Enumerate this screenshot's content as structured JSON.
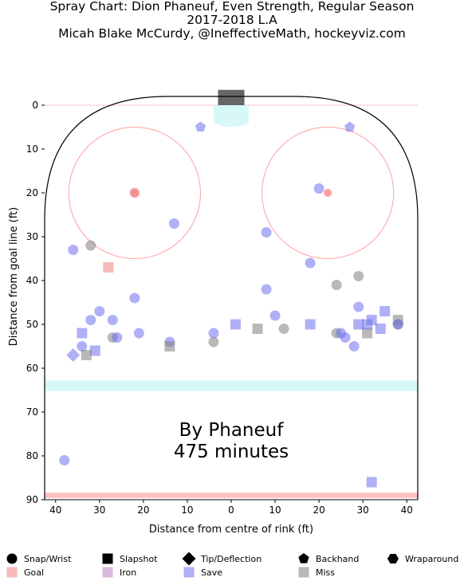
{
  "title": {
    "line1": "Spray Chart: Dion Phaneuf, Even Strength, Regular Season",
    "line2": "2017-2018 L.A",
    "line3": "Micah Blake McCurdy, @IneffectiveMath, hockeyviz.com"
  },
  "annotation": {
    "line1": "By Phaneuf",
    "line2": "475 minutes"
  },
  "colors": {
    "save": "#6f6ff0",
    "miss": "#808080",
    "goal": "#f08080",
    "iron": "#c080c0",
    "rink_line": "#000000",
    "goal_line": "#ffc0c0",
    "blue_line": "#d8f8f8",
    "crease": "#d8f8f8",
    "faceoff": "#ff9f9f",
    "net": "#666666"
  },
  "legend": {
    "shapes": [
      {
        "label": "Snap/Wrist",
        "shape": "circle"
      },
      {
        "label": "Slapshot",
        "shape": "square"
      },
      {
        "label": "Tip/Deflection",
        "shape": "diamond"
      },
      {
        "label": "Backhand",
        "shape": "pentagon"
      },
      {
        "label": "Wraparound",
        "shape": "hexagon"
      }
    ],
    "outcomes": [
      {
        "label": "Goal",
        "color": "#f08080"
      },
      {
        "label": "Iron",
        "color": "#c080c0"
      },
      {
        "label": "Save",
        "color": "#6f6ff0"
      },
      {
        "label": "Miss",
        "color": "#808080"
      }
    ]
  },
  "chart_data": {
    "type": "scatter",
    "xlabel": "Distance from centre of rink (ft)",
    "ylabel": "Distance from goal line (ft)",
    "xlim": [
      42.5,
      -42.5
    ],
    "ylim": [
      -2,
      90
    ],
    "x_ticks": [
      40,
      30,
      20,
      10,
      0,
      10,
      20,
      30,
      40
    ],
    "y_ticks": [
      0,
      10,
      20,
      30,
      40,
      50,
      60,
      70,
      80,
      90
    ],
    "grid": false,
    "legend_position": "bottom",
    "rink": {
      "faceoff_circles": [
        {
          "x": 22,
          "y": 20,
          "r": 15
        },
        {
          "x": -22,
          "y": 20,
          "r": 15
        }
      ],
      "blue_line_y": 64,
      "goal_line_y": 0,
      "bottom_line_y": 89
    },
    "shots": [
      {
        "x": 22,
        "y": 20,
        "type": "Snap/Wrist",
        "outcome": "Goal"
      },
      {
        "x": 28,
        "y": 37,
        "type": "Slapshot",
        "outcome": "Goal"
      },
      {
        "x": 13,
        "y": 27,
        "type": "Snap/Wrist",
        "outcome": "Save"
      },
      {
        "x": 36,
        "y": 33,
        "type": "Snap/Wrist",
        "outcome": "Save"
      },
      {
        "x": 32,
        "y": 32,
        "type": "Snap/Wrist",
        "outcome": "Miss"
      },
      {
        "x": 7,
        "y": 5,
        "type": "Backhand",
        "outcome": "Save"
      },
      {
        "x": -27,
        "y": 5,
        "type": "Backhand",
        "outcome": "Save"
      },
      {
        "x": -20,
        "y": 19,
        "type": "Snap/Wrist",
        "outcome": "Save"
      },
      {
        "x": -8,
        "y": 29,
        "type": "Snap/Wrist",
        "outcome": "Save"
      },
      {
        "x": -18,
        "y": 36,
        "type": "Snap/Wrist",
        "outcome": "Save"
      },
      {
        "x": -8,
        "y": 42,
        "type": "Snap/Wrist",
        "outcome": "Save"
      },
      {
        "x": -24,
        "y": 41,
        "type": "Snap/Wrist",
        "outcome": "Miss"
      },
      {
        "x": -29,
        "y": 39,
        "type": "Snap/Wrist",
        "outcome": "Miss"
      },
      {
        "x": 22,
        "y": 44,
        "type": "Snap/Wrist",
        "outcome": "Save"
      },
      {
        "x": 30,
        "y": 47,
        "type": "Snap/Wrist",
        "outcome": "Save"
      },
      {
        "x": 32,
        "y": 49,
        "type": "Snap/Wrist",
        "outcome": "Save"
      },
      {
        "x": 27,
        "y": 49,
        "type": "Snap/Wrist",
        "outcome": "Save"
      },
      {
        "x": 34,
        "y": 52,
        "type": "Slapshot",
        "outcome": "Save"
      },
      {
        "x": 31,
        "y": 56,
        "type": "Slapshot",
        "outcome": "Save"
      },
      {
        "x": 34,
        "y": 55,
        "type": "Snap/Wrist",
        "outcome": "Save"
      },
      {
        "x": 36,
        "y": 57,
        "type": "Tip/Deflection",
        "outcome": "Save"
      },
      {
        "x": 33,
        "y": 57,
        "type": "Slapshot",
        "outcome": "Miss"
      },
      {
        "x": 27,
        "y": 53,
        "type": "Snap/Wrist",
        "outcome": "Miss"
      },
      {
        "x": 26,
        "y": 53,
        "type": "Snap/Wrist",
        "outcome": "Save"
      },
      {
        "x": 21,
        "y": 52,
        "type": "Snap/Wrist",
        "outcome": "Save"
      },
      {
        "x": 14,
        "y": 54,
        "type": "Snap/Wrist",
        "outcome": "Save"
      },
      {
        "x": 14,
        "y": 55,
        "type": "Slapshot",
        "outcome": "Miss"
      },
      {
        "x": 4,
        "y": 52,
        "type": "Snap/Wrist",
        "outcome": "Save"
      },
      {
        "x": 4,
        "y": 54,
        "type": "Snap/Wrist",
        "outcome": "Miss"
      },
      {
        "x": -1,
        "y": 50,
        "type": "Slapshot",
        "outcome": "Save"
      },
      {
        "x": -6,
        "y": 51,
        "type": "Slapshot",
        "outcome": "Miss"
      },
      {
        "x": -10,
        "y": 48,
        "type": "Snap/Wrist",
        "outcome": "Save"
      },
      {
        "x": -12,
        "y": 51,
        "type": "Snap/Wrist",
        "outcome": "Miss"
      },
      {
        "x": -18,
        "y": 50,
        "type": "Slapshot",
        "outcome": "Save"
      },
      {
        "x": -24,
        "y": 52,
        "type": "Snap/Wrist",
        "outcome": "Miss"
      },
      {
        "x": -25,
        "y": 52,
        "type": "Snap/Wrist",
        "outcome": "Save"
      },
      {
        "x": -26,
        "y": 53,
        "type": "Snap/Wrist",
        "outcome": "Save"
      },
      {
        "x": -28,
        "y": 55,
        "type": "Snap/Wrist",
        "outcome": "Save"
      },
      {
        "x": -29,
        "y": 46,
        "type": "Snap/Wrist",
        "outcome": "Save"
      },
      {
        "x": -29,
        "y": 50,
        "type": "Slapshot",
        "outcome": "Save"
      },
      {
        "x": -31,
        "y": 52,
        "type": "Slapshot",
        "outcome": "Miss"
      },
      {
        "x": -31,
        "y": 50,
        "type": "Slapshot",
        "outcome": "Save"
      },
      {
        "x": -32,
        "y": 49,
        "type": "Slapshot",
        "outcome": "Save"
      },
      {
        "x": -34,
        "y": 51,
        "type": "Slapshot",
        "outcome": "Save"
      },
      {
        "x": -35,
        "y": 47,
        "type": "Slapshot",
        "outcome": "Save"
      },
      {
        "x": -38,
        "y": 49,
        "type": "Slapshot",
        "outcome": "Miss"
      },
      {
        "x": -38,
        "y": 50,
        "type": "Snap/Wrist",
        "outcome": "Miss"
      },
      {
        "x": -38,
        "y": 50,
        "type": "Snap/Wrist",
        "outcome": "Save"
      },
      {
        "x": 38,
        "y": 81,
        "type": "Snap/Wrist",
        "outcome": "Save"
      },
      {
        "x": -32,
        "y": 86,
        "type": "Slapshot",
        "outcome": "Save"
      }
    ]
  }
}
